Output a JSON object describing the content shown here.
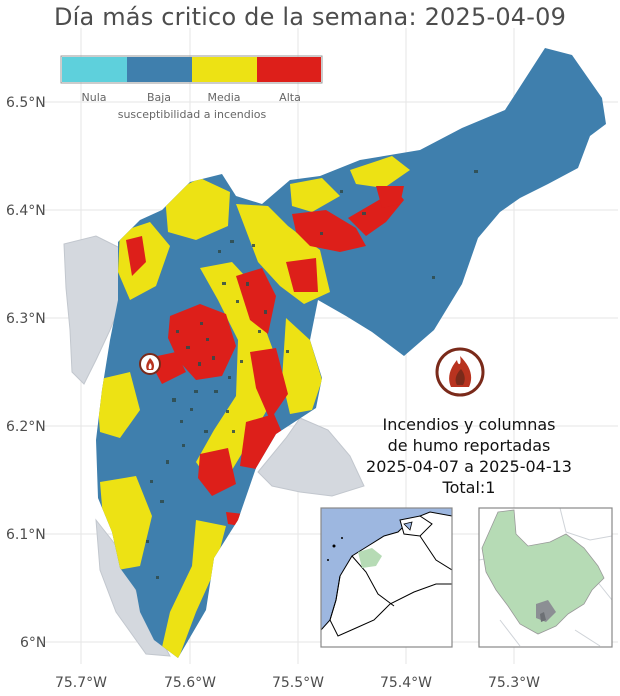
{
  "title": "Día más critico de la semana: 2025-04-09",
  "lat_ticks": [
    "6.5°N",
    "6.4°N",
    "6.3°N",
    "6.2°N",
    "6.1°N",
    "6°N"
  ],
  "lon_ticks": [
    "75.7°W",
    "75.6°W",
    "75.5°W",
    "75.4°W",
    "75.3°W"
  ],
  "legend": {
    "title": "susceptibilidad a incendios",
    "classes": [
      {
        "label": "Nula",
        "color": "#5ed0dc"
      },
      {
        "label": "Baja",
        "color": "#3f7fad"
      },
      {
        "label": "Media",
        "color": "#ede214"
      },
      {
        "label": "Alta",
        "color": "#dd1f1a"
      }
    ]
  },
  "fire_report": {
    "line1": "Incendios y columnas",
    "line2": "de humo reportadas",
    "line3": "2025-04-07 a 2025-04-13",
    "line4": "Total:1"
  },
  "icons": {
    "fire_marker": "fire-icon",
    "fire_badge": "fire-icon"
  }
}
